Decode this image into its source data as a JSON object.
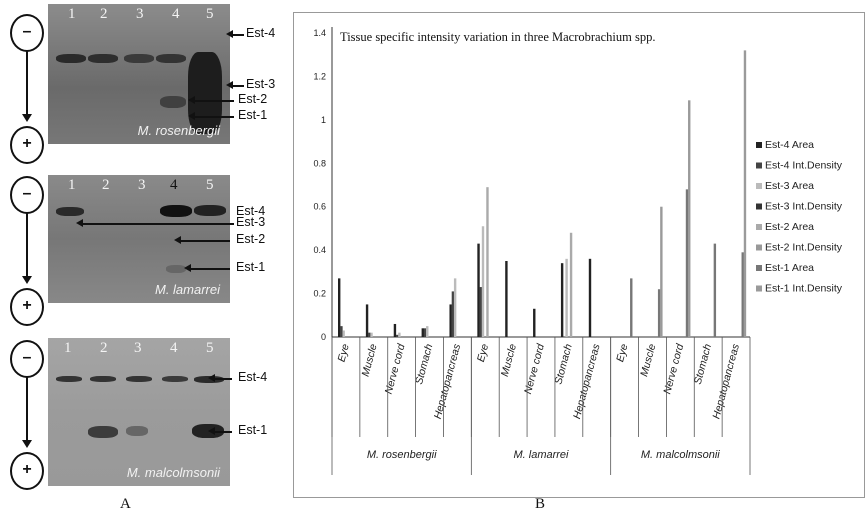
{
  "panel_a": {
    "label": "A",
    "gels": [
      {
        "lanes": [
          "1",
          "2",
          "3",
          "4",
          "5"
        ],
        "species": "M. rosenbergii",
        "est_labels": [
          "Est-4",
          "Est-3",
          "Est-2",
          "Est-1"
        ]
      },
      {
        "lanes": [
          "1",
          "2",
          "3",
          "4",
          "5"
        ],
        "species": "M. lamarrei",
        "est_labels": [
          "Est-4",
          "Est-3",
          "Est-2",
          "Est-1"
        ]
      },
      {
        "lanes": [
          "1",
          "2",
          "3",
          "4",
          "5"
        ],
        "species": "M. malcolmsonii",
        "est_labels": [
          "Est-4",
          "Est-1"
        ]
      }
    ],
    "electrode_top": "–",
    "electrode_bottom": "+"
  },
  "panel_b": {
    "label": "B"
  },
  "chart_data": {
    "type": "bar",
    "title": "Tissue specific intensity variation in three Macrobrachium spp.",
    "ylim": [
      0,
      1.4
    ],
    "yticks": [
      "0",
      "0.2",
      "0.4",
      "0.6",
      "0.8",
      "1",
      "1.2",
      "1.4"
    ],
    "groups": [
      {
        "name": "M. rosenbergii",
        "categories": [
          "Eye",
          "Muscle",
          "Nerve cord",
          "Stomach",
          "Hepatopancreas"
        ]
      },
      {
        "name": "M. lamarrei",
        "categories": [
          "Eye",
          "Muscle",
          "Nerve cord",
          "Stomach",
          "Hepatopancreas"
        ]
      },
      {
        "name": "M. malcolmsonii",
        "categories": [
          "Eye",
          "Muscle",
          "Nerve cord",
          "Stomach",
          "Hepatopancreas"
        ]
      }
    ],
    "series": [
      {
        "name": "Est-4 Area",
        "color": "#222222",
        "values": [
          0.27,
          0.15,
          0.06,
          0.04,
          0.15,
          0.43,
          0.35,
          0.13,
          0.34,
          0.36,
          0,
          0,
          0,
          0,
          0
        ]
      },
      {
        "name": "Est-4 Int.Density",
        "color": "#444444",
        "values": [
          0.05,
          0.02,
          0.01,
          0.04,
          0.21,
          0.23,
          0,
          0,
          0,
          0,
          0,
          0,
          0,
          0,
          0
        ]
      },
      {
        "name": "Est-3 Area",
        "color": "#bbbbbb",
        "values": [
          0.03,
          0.02,
          0.02,
          0.05,
          0.27,
          0.51,
          0,
          0,
          0.36,
          0,
          0,
          0,
          0,
          0,
          0
        ]
      },
      {
        "name": "Est-3 Int.Density",
        "color": "#333333",
        "values": [
          0,
          0,
          0,
          0,
          0,
          0,
          0,
          0,
          0,
          0,
          0,
          0,
          0,
          0,
          0
        ]
      },
      {
        "name": "Est-2 Area",
        "color": "#aaaaaa",
        "values": [
          0,
          0,
          0,
          0,
          0,
          0.69,
          0,
          0,
          0.48,
          0,
          0,
          0,
          0,
          0,
          0
        ]
      },
      {
        "name": "Est-2 Int.Density",
        "color": "#999999",
        "values": [
          0,
          0,
          0,
          0,
          0,
          0,
          0,
          0,
          0,
          0,
          0,
          0,
          0,
          0,
          0
        ]
      },
      {
        "name": "Est-1 Area",
        "color": "#777777",
        "values": [
          0,
          0,
          0,
          0,
          0,
          0,
          0,
          0,
          0,
          0,
          0.27,
          0.22,
          0.68,
          0.43,
          0.39
        ]
      },
      {
        "name": "Est-1 Int.Density",
        "color": "#9a9a9a",
        "values": [
          0,
          0,
          0,
          0,
          0,
          0,
          0,
          0,
          0,
          0,
          0,
          0.6,
          1.09,
          0,
          1.32
        ]
      }
    ],
    "legend_position": "right",
    "grid": false
  }
}
